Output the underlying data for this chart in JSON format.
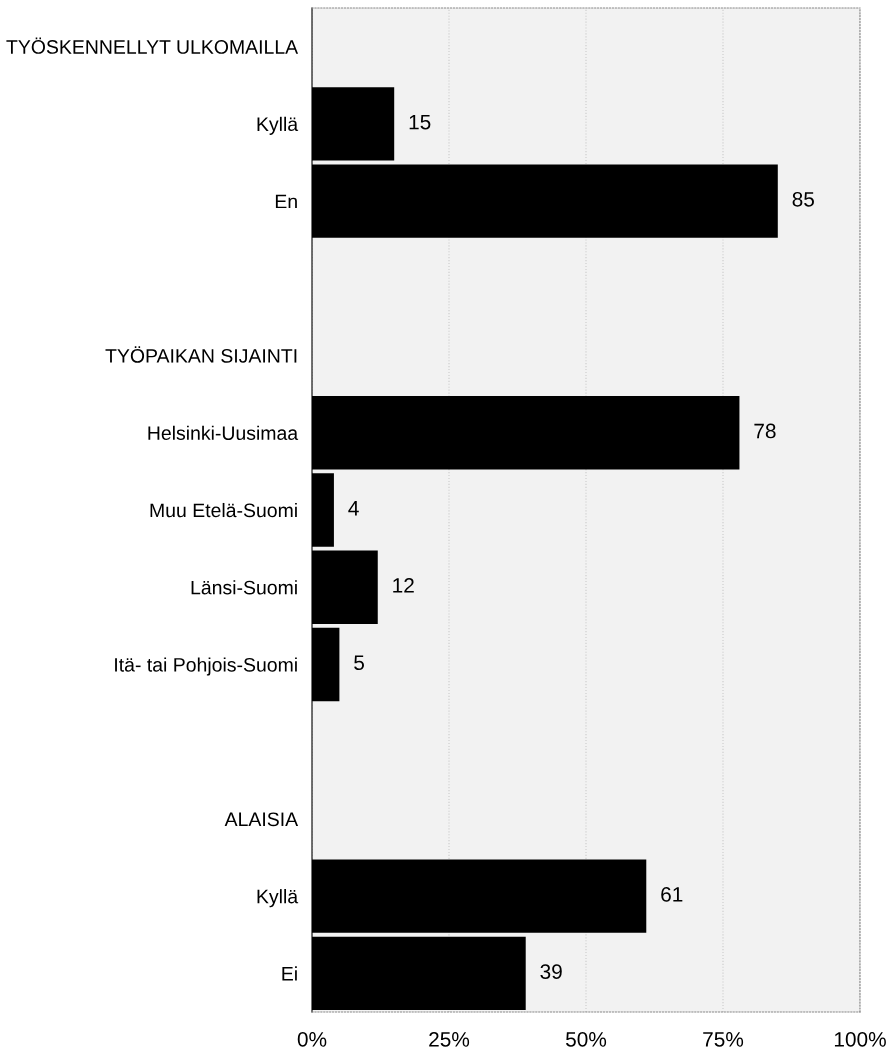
{
  "chart_data": {
    "type": "bar",
    "orientation": "horizontal",
    "categories": [
      "TYÖSKENNELLYT ULKOMAILLA",
      "Kyllä",
      "En",
      null,
      "TYÖPAIKAN SIJAINTI",
      "Helsinki-Uusimaa",
      "Muu Etelä-Suomi",
      "Länsi-Suomi",
      "Itä- tai Pohjois-Suomi",
      null,
      "ALAISIA",
      "Kyllä",
      "Ei"
    ],
    "values": [
      null,
      15,
      85,
      null,
      null,
      78,
      4,
      12,
      5,
      null,
      null,
      61,
      39
    ],
    "color": "#000000",
    "xlim": [
      0,
      100
    ],
    "xticks": [
      {
        "value": 0,
        "label": "0%"
      },
      {
        "value": 25,
        "label": "25%"
      },
      {
        "value": 50,
        "label": "50%"
      },
      {
        "value": 75,
        "label": "75%"
      },
      {
        "value": 100,
        "label": "100%"
      }
    ],
    "grid": "x",
    "data_labels": true
  }
}
